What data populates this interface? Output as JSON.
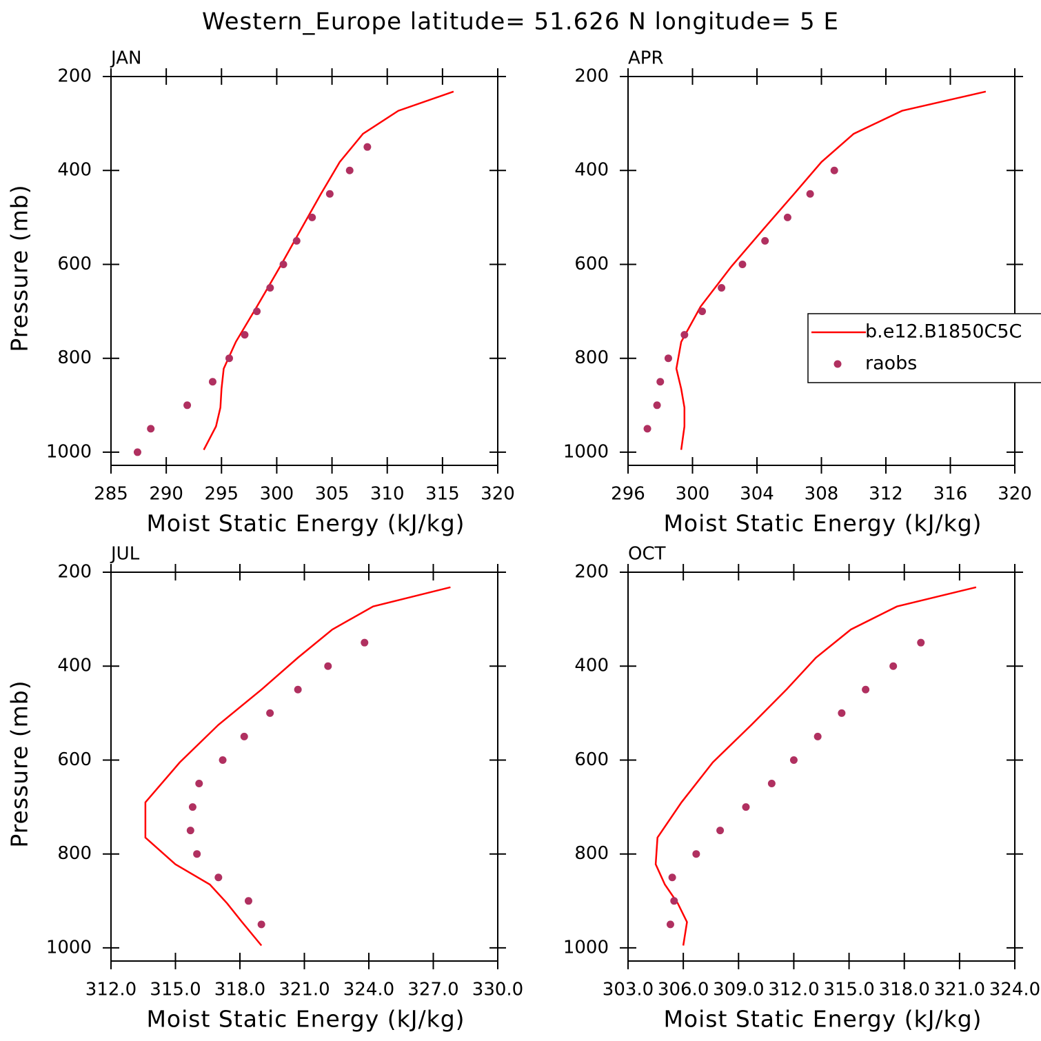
{
  "title": "Western_Europe  latitude= 51.626 N longitude= 5 E",
  "chart_data": [
    {
      "type": "line",
      "title": "JAN",
      "xlabel": "Moist Static Energy (kJ/kg)",
      "ylabel": "Pressure (mb)",
      "xlim": [
        285,
        320
      ],
      "xticks": [
        285,
        290,
        295,
        300,
        305,
        310,
        315,
        320
      ],
      "ylim": [
        1028,
        200
      ],
      "yticks": [
        200,
        400,
        600,
        800,
        1000
      ],
      "series": [
        {
          "mode": "line",
          "color": "#ff0000",
          "x": [
            316.0,
            311.0,
            307.8,
            305.7,
            304.0,
            302.2,
            300.3,
            298.2,
            296.3,
            295.2,
            295.0,
            294.9,
            294.5,
            293.4
          ],
          "y": [
            232,
            273,
            322,
            382,
            450,
            525,
            605,
            690,
            765,
            822,
            865,
            905,
            945,
            995
          ]
        },
        {
          "mode": "markers",
          "color": "#b03060",
          "x": [
            308.2,
            306.6,
            304.8,
            303.2,
            301.8,
            300.6,
            299.4,
            298.2,
            297.1,
            295.7,
            294.2,
            291.9,
            288.6,
            287.4
          ],
          "y": [
            350,
            400,
            450,
            500,
            550,
            600,
            650,
            700,
            750,
            800,
            850,
            900,
            950,
            1000
          ]
        }
      ]
    },
    {
      "type": "line",
      "title": "APR",
      "xlabel": "Moist Static Energy (kJ/kg)",
      "legend": "right",
      "xlim": [
        296,
        320
      ],
      "xticks": [
        296,
        300,
        304,
        308,
        312,
        316,
        320
      ],
      "ylim": [
        1028,
        200
      ],
      "yticks": [
        200,
        400,
        600,
        800,
        1000
      ],
      "series": [
        {
          "name": "b.e12.B1850C5C",
          "mode": "line",
          "color": "#ff0000",
          "x": [
            318.2,
            313.0,
            310.0,
            308.0,
            306.3,
            304.4,
            302.4,
            300.5,
            299.3,
            299.0,
            299.3,
            299.5,
            299.5,
            299.3
          ],
          "y": [
            232,
            273,
            322,
            382,
            450,
            525,
            605,
            690,
            765,
            822,
            865,
            905,
            945,
            995
          ]
        },
        {
          "name": "raobs",
          "mode": "markers",
          "color": "#b03060",
          "x": [
            308.8,
            307.3,
            305.9,
            304.5,
            303.1,
            301.8,
            300.6,
            299.5,
            298.5,
            298.0,
            297.8,
            297.2
          ],
          "y": [
            400,
            450,
            500,
            550,
            600,
            650,
            700,
            750,
            800,
            850,
            900,
            950
          ]
        }
      ]
    },
    {
      "type": "line",
      "title": "JUL",
      "xlabel": "Moist Static Energy (kJ/kg)",
      "ylabel": "Pressure (mb)",
      "xlim": [
        312,
        330
      ],
      "xticks": [
        {
          "value": 312,
          "label": "312.0"
        },
        {
          "value": 315,
          "label": "315.0"
        },
        {
          "value": 318,
          "label": "318.0"
        },
        {
          "value": 321,
          "label": "321.0"
        },
        {
          "value": 324,
          "label": "324.0"
        },
        {
          "value": 327,
          "label": "327.0"
        },
        {
          "value": 330,
          "label": "330.0"
        }
      ],
      "ylim": [
        1028,
        200
      ],
      "yticks": [
        200,
        400,
        600,
        800,
        1000
      ],
      "series": [
        {
          "mode": "line",
          "color": "#ff0000",
          "x": [
            327.8,
            324.2,
            322.3,
            320.7,
            319.0,
            317.0,
            315.2,
            313.6,
            313.6,
            315.0,
            316.6,
            317.4,
            318.1,
            319.0
          ],
          "y": [
            232,
            273,
            322,
            382,
            450,
            525,
            605,
            690,
            765,
            822,
            865,
            905,
            945,
            995
          ]
        },
        {
          "mode": "markers",
          "color": "#b03060",
          "x": [
            323.8,
            322.1,
            320.7,
            319.4,
            318.2,
            317.2,
            316.1,
            315.8,
            315.7,
            316.0,
            317.0,
            318.4,
            319.0
          ],
          "y": [
            350,
            400,
            450,
            500,
            550,
            600,
            650,
            700,
            750,
            800,
            850,
            900,
            950
          ]
        }
      ]
    },
    {
      "type": "line",
      "title": "OCT",
      "xlabel": "Moist Static Energy (kJ/kg)",
      "xlim": [
        303,
        324
      ],
      "xticks": [
        {
          "value": 303,
          "label": "303.0"
        },
        {
          "value": 306,
          "label": "306.0"
        },
        {
          "value": 309,
          "label": "309.0"
        },
        {
          "value": 312,
          "label": "312.0"
        },
        {
          "value": 315,
          "label": "315.0"
        },
        {
          "value": 318,
          "label": "318.0"
        },
        {
          "value": 321,
          "label": "321.0"
        },
        {
          "value": 324,
          "label": "324.0"
        }
      ],
      "ylim": [
        1028,
        200
      ],
      "yticks": [
        200,
        400,
        600,
        800,
        1000
      ],
      "series": [
        {
          "mode": "line",
          "color": "#ff0000",
          "x": [
            321.9,
            317.6,
            315.1,
            313.2,
            311.6,
            309.7,
            307.6,
            305.9,
            304.6,
            304.5,
            305.0,
            305.7,
            306.2,
            306.0
          ],
          "y": [
            232,
            273,
            322,
            382,
            450,
            525,
            605,
            690,
            765,
            822,
            865,
            905,
            945,
            995
          ]
        },
        {
          "mode": "markers",
          "color": "#b03060",
          "x": [
            318.9,
            317.4,
            315.9,
            314.6,
            313.3,
            312.0,
            310.8,
            309.4,
            308.0,
            306.7,
            305.4,
            305.5,
            305.3
          ],
          "y": [
            350,
            400,
            450,
            500,
            550,
            600,
            650,
            700,
            750,
            800,
            850,
            900,
            950
          ]
        }
      ]
    }
  ]
}
